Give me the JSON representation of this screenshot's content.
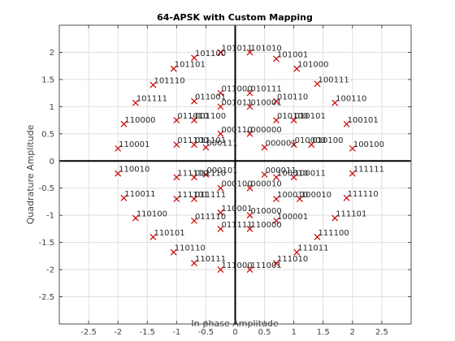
{
  "chart_data": {
    "type": "scatter",
    "title": "64-APSK with Custom Mapping",
    "xlabel": "In-phase Amplitude",
    "ylabel": "Quadrature Amplitude",
    "xlim": [
      -3,
      3
    ],
    "ylim": [
      -3,
      2.5
    ],
    "xticks": [
      -2.5,
      -2,
      -1.5,
      -1,
      -0.5,
      0,
      0.5,
      1,
      1.5,
      2,
      2.5
    ],
    "yticks": [
      -2.5,
      -2,
      -1.5,
      -1,
      -0.5,
      0,
      0.5,
      1,
      1.5,
      2
    ],
    "grid": true,
    "marker": "x",
    "marker_color": "#cc0000",
    "zero_axes": true,
    "points": [
      {
        "x": 0.25,
        "y": 0.5,
        "label": "000000"
      },
      {
        "x": 0.5,
        "y": 0.25,
        "label": "000001"
      },
      {
        "x": 0.25,
        "y": -0.5,
        "label": "000010"
      },
      {
        "x": 0.5,
        "y": -0.25,
        "label": "000011"
      },
      {
        "x": -0.25,
        "y": -0.5,
        "label": "000100"
      },
      {
        "x": -0.5,
        "y": -0.25,
        "label": "000101"
      },
      {
        "x": -0.25,
        "y": 0.5,
        "label": "000110"
      },
      {
        "x": -0.5,
        "y": 0.25,
        "label": "000111"
      },
      {
        "x": 0.25,
        "y": -1.0,
        "label": "010000"
      },
      {
        "x": 0.25,
        "y": 1.0,
        "label": "010001"
      },
      {
        "x": 0.7,
        "y": 1.1,
        "label": "010110"
      },
      {
        "x": 0.7,
        "y": 0.75,
        "label": "010100"
      },
      {
        "x": 1.0,
        "y": 0.75,
        "label": "010101"
      },
      {
        "x": 1.0,
        "y": 0.3,
        "label": "010000"
      },
      {
        "x": 1.3,
        "y": 0.3,
        "label": "010100"
      },
      {
        "x": 0.7,
        "y": -0.3,
        "label": "100010"
      },
      {
        "x": 1.0,
        "y": -0.3,
        "label": "100011"
      },
      {
        "x": 1.1,
        "y": -0.7,
        "label": "100010"
      },
      {
        "x": 0.7,
        "y": -0.7,
        "label": "100010"
      },
      {
        "x": 0.7,
        "y": -1.1,
        "label": "100001"
      },
      {
        "x": 0.25,
        "y": -1.25,
        "label": "110000"
      },
      {
        "x": -0.25,
        "y": -0.95,
        "label": "110001"
      },
      {
        "x": -0.25,
        "y": -1.25,
        "label": "011111"
      },
      {
        "x": -0.7,
        "y": -0.7,
        "label": "011111"
      },
      {
        "x": -0.7,
        "y": -1.1,
        "label": "011110"
      },
      {
        "x": -1.0,
        "y": -0.7,
        "label": "111101"
      },
      {
        "x": -1.0,
        "y": -0.3,
        "label": "111110"
      },
      {
        "x": -0.7,
        "y": -0.3,
        "label": "011110"
      },
      {
        "x": -1.0,
        "y": 0.3,
        "label": "011100"
      },
      {
        "x": -0.7,
        "y": 0.3,
        "label": "011101"
      },
      {
        "x": -1.0,
        "y": 0.75,
        "label": "011010"
      },
      {
        "x": -0.7,
        "y": 0.75,
        "label": "001100"
      },
      {
        "x": -0.7,
        "y": 1.1,
        "label": "011001"
      },
      {
        "x": -0.25,
        "y": 1.25,
        "label": "011000"
      },
      {
        "x": -0.25,
        "y": 1.0,
        "label": "001011"
      },
      {
        "x": 0.25,
        "y": 1.25,
        "label": "010111"
      },
      {
        "x": 0.25,
        "y": 2.0,
        "label": "101010"
      },
      {
        "x": -0.25,
        "y": 2.0,
        "label": "101011"
      },
      {
        "x": -0.7,
        "y": 1.9,
        "label": "101100"
      },
      {
        "x": -1.05,
        "y": 1.7,
        "label": "101101"
      },
      {
        "x": -1.4,
        "y": 1.4,
        "label": "101110"
      },
      {
        "x": -1.7,
        "y": 1.07,
        "label": "101111"
      },
      {
        "x": -1.9,
        "y": 0.68,
        "label": "110000"
      },
      {
        "x": -2.0,
        "y": 0.23,
        "label": "110001"
      },
      {
        "x": -2.0,
        "y": -0.23,
        "label": "110010"
      },
      {
        "x": -1.9,
        "y": -0.68,
        "label": "110011"
      },
      {
        "x": -1.7,
        "y": -1.05,
        "label": "110100"
      },
      {
        "x": -1.4,
        "y": -1.4,
        "label": "110101"
      },
      {
        "x": -1.05,
        "y": -1.68,
        "label": "110110"
      },
      {
        "x": -0.7,
        "y": -1.88,
        "label": "110111"
      },
      {
        "x": -0.25,
        "y": -2.0,
        "label": "111000"
      },
      {
        "x": 0.25,
        "y": -2.0,
        "label": "111001"
      },
      {
        "x": 0.7,
        "y": -1.88,
        "label": "111010"
      },
      {
        "x": 1.05,
        "y": -1.68,
        "label": "111011"
      },
      {
        "x": 1.4,
        "y": -1.4,
        "label": "111100"
      },
      {
        "x": 1.7,
        "y": -1.05,
        "label": "111101"
      },
      {
        "x": 1.9,
        "y": -0.68,
        "label": "111110"
      },
      {
        "x": 2.0,
        "y": -0.23,
        "label": "111111"
      },
      {
        "x": 2.0,
        "y": 0.23,
        "label": "100100"
      },
      {
        "x": 1.9,
        "y": 0.68,
        "label": "100101"
      },
      {
        "x": 1.7,
        "y": 1.07,
        "label": "100110"
      },
      {
        "x": 1.4,
        "y": 1.42,
        "label": "100111"
      },
      {
        "x": 1.05,
        "y": 1.7,
        "label": "101000"
      },
      {
        "x": 0.7,
        "y": 1.88,
        "label": "101001"
      }
    ]
  }
}
